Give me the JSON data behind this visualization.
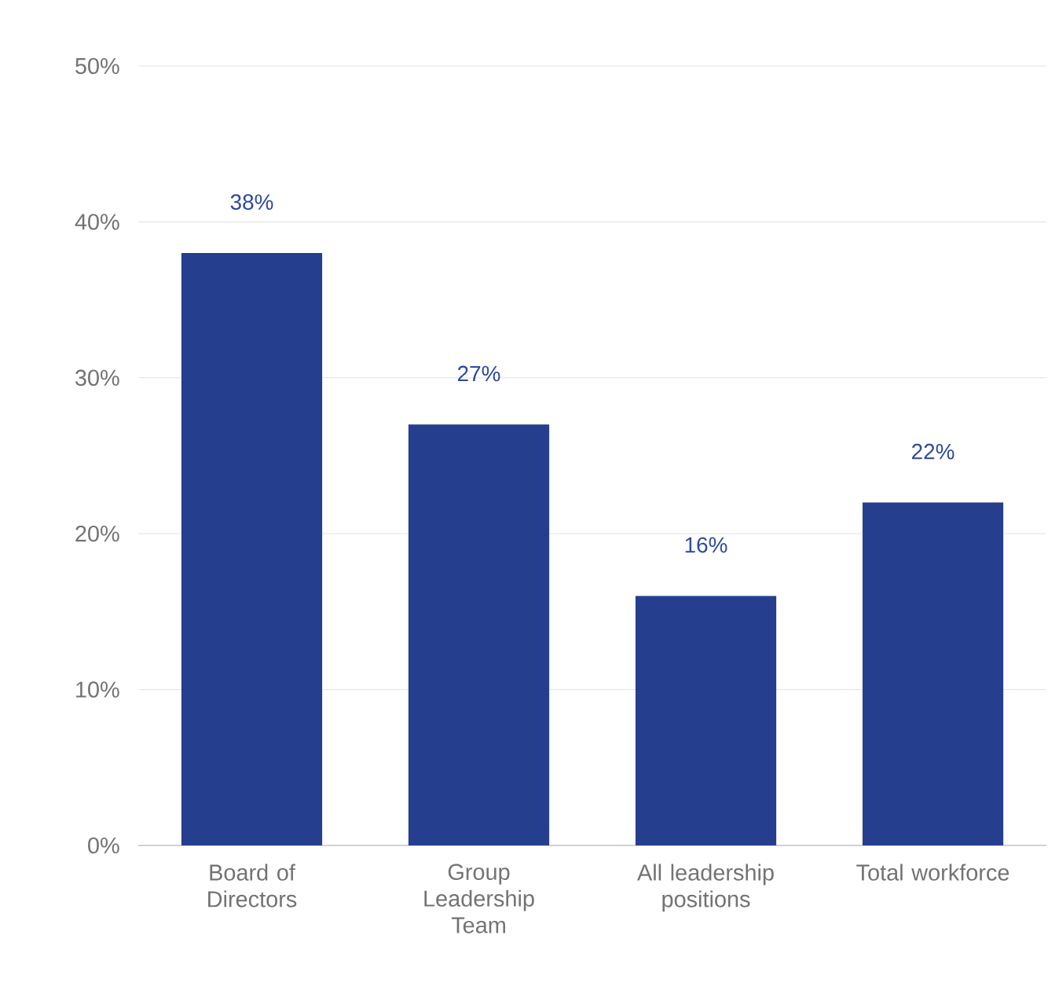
{
  "chart_data": {
    "type": "bar",
    "categories": [
      "Board of Directors",
      "Group Leadership Team",
      "All leadership positions",
      "Total workforce"
    ],
    "values": [
      38,
      27,
      16,
      22
    ],
    "value_labels": [
      "38%",
      "27%",
      "16%",
      "22%"
    ],
    "color": "#253f8e",
    "ylim": [
      0,
      50
    ],
    "yticks": [
      {
        "value": 0,
        "label": "0%"
      },
      {
        "value": 10,
        "label": "10%"
      },
      {
        "value": 20,
        "label": "20%"
      },
      {
        "value": 30,
        "label": "30%"
      },
      {
        "value": 40,
        "label": "40%"
      },
      {
        "value": 50,
        "label": "50%"
      }
    ],
    "grid": "y"
  }
}
